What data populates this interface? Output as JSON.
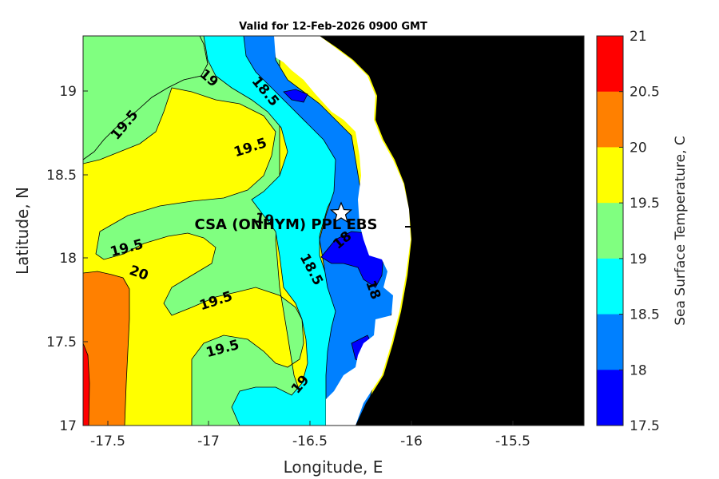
{
  "title": "Valid for 12-Feb-2026 0900 GMT",
  "xlabel": "Longitude, E",
  "ylabel": "Latitude, N",
  "colorbar_label": "Sea Surface Temperature, C",
  "x_ticks": [
    "-17.5",
    "-17",
    "-16.5",
    "-16",
    "-15.5"
  ],
  "y_ticks": [
    "19",
    "18.5",
    "18",
    "17.5",
    "17"
  ],
  "colorbar_ticks": [
    "21",
    "20.5",
    "20",
    "19.5",
    "19",
    "18.5",
    "18",
    "17.5"
  ],
  "colorbar_colors": [
    "#ff0000",
    "#ff8000",
    "#ffff00",
    "#80ff80",
    "#00ffff",
    "#0080ff",
    "#0000ff"
  ],
  "land_color": "#000000",
  "site": {
    "name": "CSA (ONHYM) PPL EBS",
    "marker": "white-star",
    "lon": -16.35,
    "lat": 18.27
  },
  "contour_labels": [
    "19.5",
    "19",
    "18.5",
    "19.5",
    "19.5",
    "20",
    "19.5",
    "19.5",
    "19",
    "18.5",
    "18",
    "18",
    "19"
  ]
}
